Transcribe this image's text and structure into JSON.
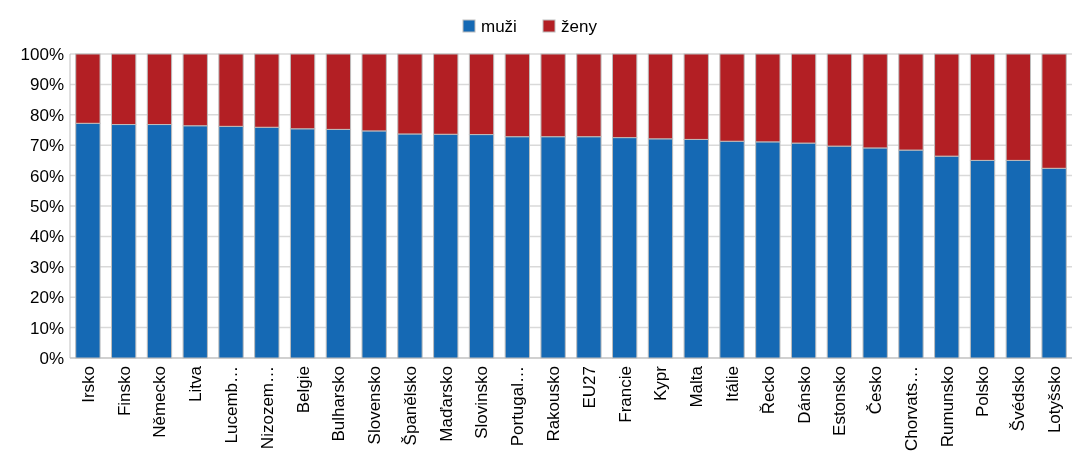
{
  "chart_data": {
    "type": "bar",
    "stacked": true,
    "categories": [
      "Irsko",
      "Finsko",
      "Německo",
      "Litva",
      "Lucemb…",
      "Nizozem…",
      "Belgie",
      "Bulharsko",
      "Slovensko",
      "Španělsko",
      "Maďarsko",
      "Slovinsko",
      "Portugal…",
      "Rakousko",
      "EU27",
      "Francie",
      "Kypr",
      "Malta",
      "Itálie",
      "Řecko",
      "Dánsko",
      "Estonsko",
      "Česko",
      "Chorvats…",
      "Rumunsko",
      "Polsko",
      "Švédsko",
      "Lotyšsko"
    ],
    "series": [
      {
        "name": "muži",
        "color": "#1569b4",
        "values": [
          77.2,
          76.8,
          76.8,
          76.4,
          76.2,
          75.9,
          75.4,
          75.2,
          74.7,
          73.7,
          73.6,
          73.5,
          72.8,
          72.8,
          72.8,
          72.5,
          72.1,
          71.9,
          71.3,
          71.1,
          70.7,
          69.7,
          69.1,
          68.4,
          66.4,
          65.0,
          65.0,
          62.4
        ]
      },
      {
        "name": "ženy",
        "color": "#b31f24",
        "values": [
          22.8,
          23.2,
          23.2,
          23.6,
          23.8,
          24.1,
          24.6,
          24.8,
          25.3,
          26.3,
          26.4,
          26.5,
          27.2,
          27.2,
          27.2,
          27.5,
          27.9,
          28.1,
          28.7,
          28.9,
          29.3,
          30.3,
          30.9,
          31.6,
          33.6,
          35.0,
          35.0,
          37.6
        ]
      }
    ],
    "ylim": [
      0,
      100
    ],
    "yticks": [
      {
        "value": 0,
        "label": "0%"
      },
      {
        "value": 10,
        "label": "10%"
      },
      {
        "value": 20,
        "label": "20%"
      },
      {
        "value": 30,
        "label": "30%"
      },
      {
        "value": 40,
        "label": "40%"
      },
      {
        "value": 50,
        "label": "50%"
      },
      {
        "value": 60,
        "label": "60%"
      },
      {
        "value": 70,
        "label": "70%"
      },
      {
        "value": 80,
        "label": "80%"
      },
      {
        "value": 90,
        "label": "90%"
      },
      {
        "value": 100,
        "label": "100%"
      }
    ],
    "grid": "y",
    "legend": "top"
  }
}
